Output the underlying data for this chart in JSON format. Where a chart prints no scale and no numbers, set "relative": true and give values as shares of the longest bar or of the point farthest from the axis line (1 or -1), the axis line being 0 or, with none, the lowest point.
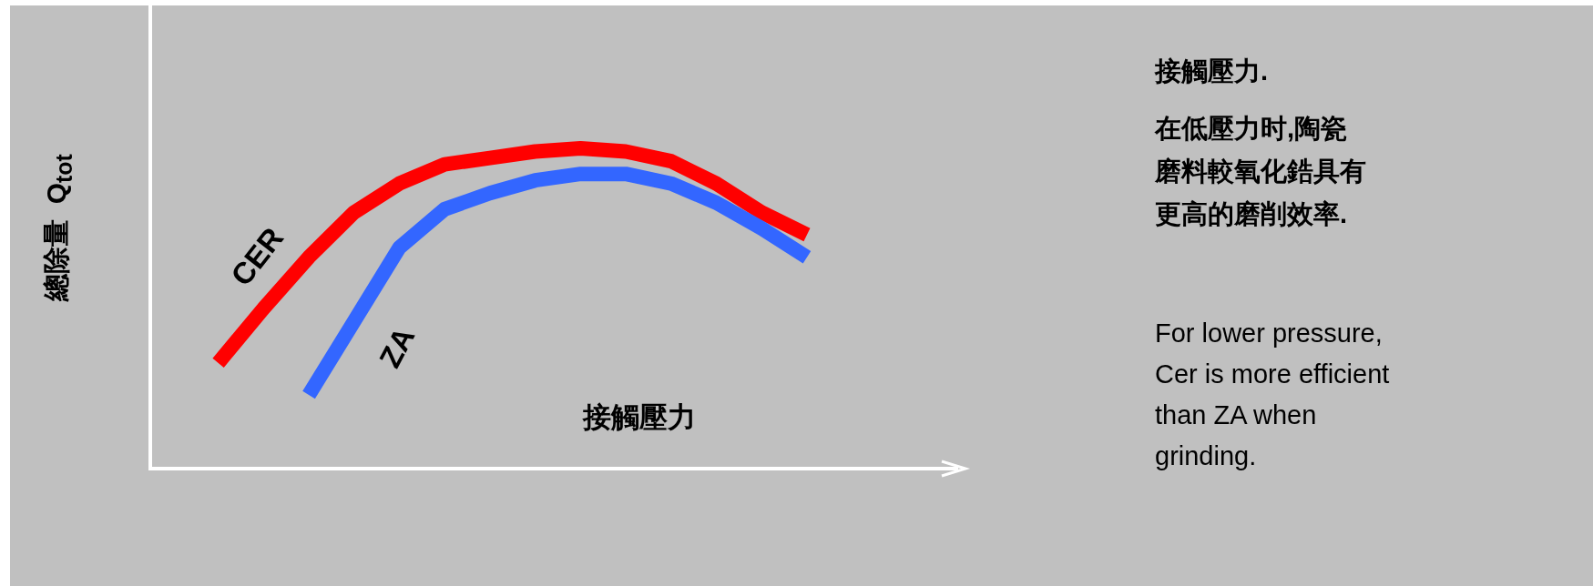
{
  "chart_data": {
    "type": "line",
    "relative": true,
    "xlabel": "接觸壓力",
    "ylabel": "總除量  Q$_{tot}$",
    "categories": [
      null,
      null,
      null,
      null,
      null,
      null,
      null,
      null,
      null,
      null,
      null,
      null,
      null,
      null,
      null,
      null,
      null,
      null
    ],
    "series": [
      {
        "name": "CER",
        "color": "#ff0000",
        "values": [
          null,
          0.33,
          0.5,
          0.66,
          0.8,
          0.89,
          0.95,
          0.97,
          0.99,
          1.0,
          0.99,
          0.96,
          0.89,
          0.8,
          0.73,
          null,
          null,
          null
        ]
      },
      {
        "name": "ZA",
        "color": "#3366ff",
        "values": [
          null,
          null,
          null,
          0.23,
          0.46,
          0.69,
          0.81,
          0.86,
          0.9,
          0.92,
          0.92,
          0.89,
          0.83,
          0.75,
          0.66,
          null,
          null,
          null
        ]
      }
    ],
    "annotations": [
      "接觸壓力.",
      "在低壓力时,陶瓷磨料較氧化鋯具有更高的磨削效率.",
      "For lower pressure, Cer is more efficient than ZA when grinding."
    ]
  }
}
